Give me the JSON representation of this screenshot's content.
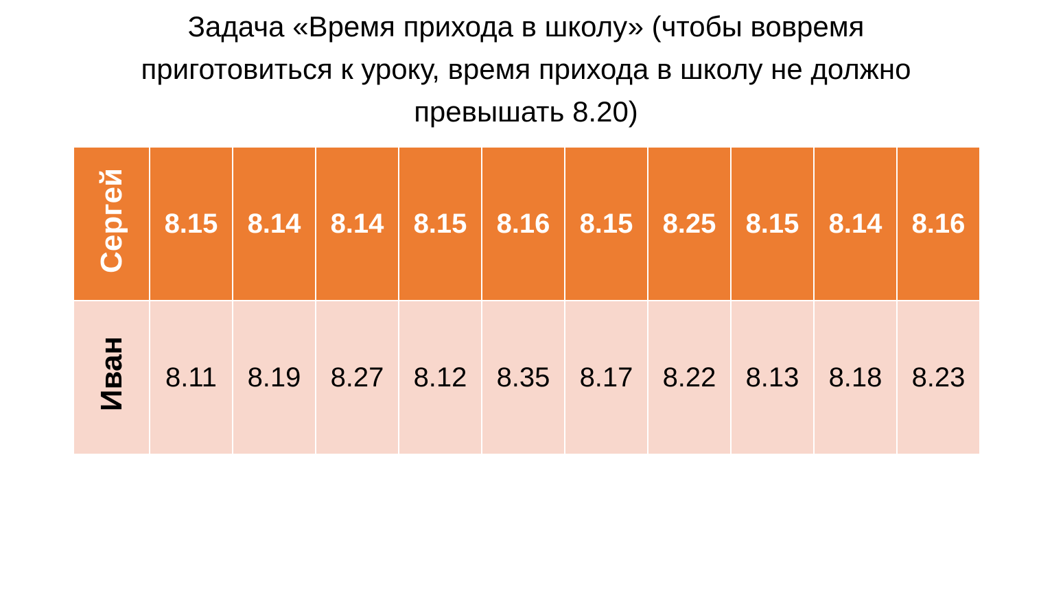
{
  "title": "Задача «Время прихода в школу» (чтобы вовремя приготовиться к уроку, время прихода в школу не должно превышать 8.20)",
  "table": {
    "rows": [
      {
        "name": "Сергей",
        "values": [
          "8.15",
          "8.14",
          "8.14",
          "8.15",
          "8.16",
          "8.15",
          "8.25",
          "8.15",
          "8.14",
          "8.16"
        ]
      },
      {
        "name": "Иван",
        "values": [
          "8.11",
          "8.19",
          "8.27",
          "8.12",
          "8.35",
          "8.17",
          "8.22",
          "8.13",
          "8.18",
          "8.23"
        ]
      }
    ]
  }
}
